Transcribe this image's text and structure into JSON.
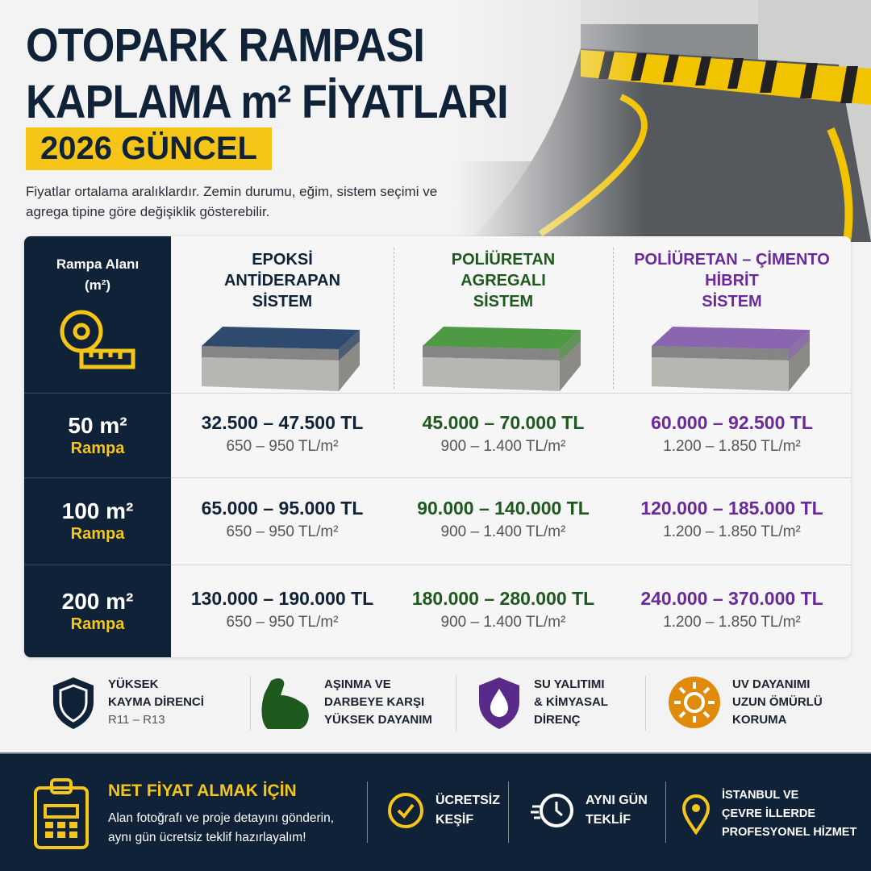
{
  "header": {
    "title_line1": "OTOPARK RAMPASI",
    "title_line2": "KAPLAMA m² FİYATLARI",
    "badge": "2026 GÜNCEL",
    "subtitle": "Fiyatlar ortalama aralıklardır. Zemin durumu, eğim, sistem seçimi ve agrega tipine göre değişiklik gösterebilir."
  },
  "colors": {
    "navy": "#0f2238",
    "yellow": "#f5c518",
    "green": "#1e5a1e",
    "purple": "#6a2a9a",
    "orange": "#e08a0c"
  },
  "table": {
    "corner_label_line1": "Rampa Alanı",
    "corner_label_line2": "(m²)",
    "corner_icon": "tape-measure-icon",
    "columns": [
      {
        "line1": "EPOKSİ",
        "line2": "ANTİDERAPAN",
        "line3": "SİSTEM",
        "color": "#0f2238",
        "tile": "#2e4a6e"
      },
      {
        "line1": "POLİÜRETAN",
        "line2": "AGREGALI",
        "line3": "SİSTEM",
        "color": "#1e5a1e",
        "tile": "#4e9a44"
      },
      {
        "line1": "POLİÜRETAN – ÇİMENTO",
        "line2": "HİBRİT",
        "line3": "SİSTEM",
        "color": "#6a2a9a",
        "tile": "#8a66b0"
      }
    ],
    "rows": [
      {
        "area": "50 m²",
        "label": "Rampa",
        "cells": [
          {
            "price": "32.500 – 47.500 TL",
            "unit": "650 – 950 TL/m²"
          },
          {
            "price": "45.000 – 70.000 TL",
            "unit": "900 – 1.400 TL/m²"
          },
          {
            "price": "60.000 – 92.500 TL",
            "unit": "1.200 – 1.850 TL/m²"
          }
        ]
      },
      {
        "area": "100 m²",
        "label": "Rampa",
        "cells": [
          {
            "price": "65.000 – 95.000 TL",
            "unit": "650 – 950 TL/m²"
          },
          {
            "price": "90.000 – 140.000 TL",
            "unit": "900 – 1.400 TL/m²"
          },
          {
            "price": "120.000 – 185.000 TL",
            "unit": "1.200 – 1.850 TL/m²"
          }
        ]
      },
      {
        "area": "200 m²",
        "label": "Rampa",
        "cells": [
          {
            "price": "130.000 – 190.000 TL",
            "unit": "650 – 950 TL/m²"
          },
          {
            "price": "180.000 – 280.000 TL",
            "unit": "900 – 1.400 TL/m²"
          },
          {
            "price": "240.000 – 370.000 TL",
            "unit": "1.200 – 1.850 TL/m²"
          }
        ]
      }
    ]
  },
  "features": [
    {
      "icon": "shield-icon",
      "line1": "YÜKSEK",
      "line2": "KAYMA DİRENCİ",
      "line3": "R11 – R13"
    },
    {
      "icon": "muscle-arm-icon",
      "line1": "AŞINMA VE",
      "line2": "DARBEYE KARŞI",
      "line3": "YÜKSEK DAYANIM"
    },
    {
      "icon": "water-drop-shield-icon",
      "line1": "SU YALITIMI",
      "line2": "& KİMYASAL",
      "line3": "DİRENÇ"
    },
    {
      "icon": "sun-icon",
      "line1": "UV DAYANIMI",
      "line2": "UZUN ÖMÜRLÜ",
      "line3": "KORUMA"
    }
  ],
  "footer": {
    "icon": "clipboard-calculator-icon",
    "title": "NET FİYAT ALMAK İÇİN",
    "text_line1": "Alan fotoğrafı ve proje detayını gönderin,",
    "text_line2": "aynı gün ücretsiz teklif hazırlayalım!",
    "items": [
      {
        "icon": "check-circle-icon",
        "line1": "ÜCRETSİZ",
        "line2": "KEŞİF"
      },
      {
        "icon": "fast-clock-icon",
        "line1": "AYNI GÜN",
        "line2": "TEKLİF"
      },
      {
        "icon": "location-pin-icon",
        "line1": "İSTANBUL VE",
        "line2": "ÇEVRE İLLERDE",
        "line3": "PROFESYONEL HİZMET"
      }
    ]
  }
}
